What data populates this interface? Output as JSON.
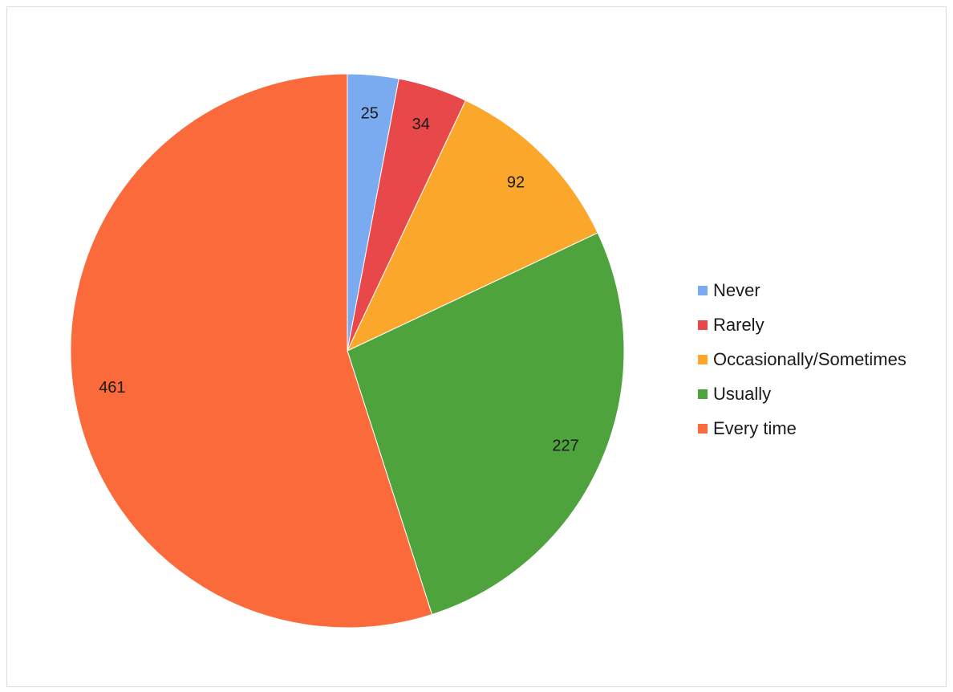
{
  "chart_data": {
    "type": "pie",
    "title": "",
    "legend_position": "right",
    "slices": [
      {
        "label": "Never",
        "value": 25,
        "value_label": "25",
        "color": "#7aaaf0"
      },
      {
        "label": "Rarely",
        "value": 34,
        "value_label": "34",
        "color": "#e8484a"
      },
      {
        "label": "Occasionally/Sometimes",
        "value": 92,
        "value_label": "92",
        "color": "#fba72c"
      },
      {
        "label": "Usually",
        "value": 227,
        "value_label": "227",
        "color": "#4fa33c"
      },
      {
        "label": "Every time",
        "value": 461,
        "value_label": "461",
        "color": "#fb6a3a"
      }
    ]
  }
}
